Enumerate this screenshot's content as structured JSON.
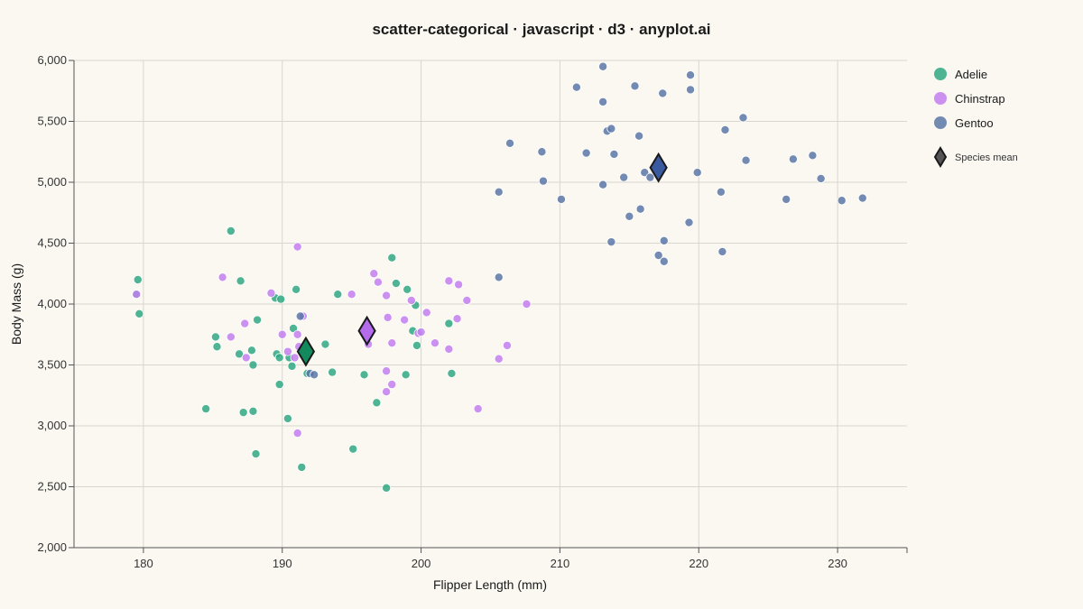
{
  "chart_data": {
    "type": "scatter",
    "title": "scatter-categorical · javascript · d3 · anyplot.ai",
    "xlabel": "Flipper Length (mm)",
    "ylabel": "Body Mass (g)",
    "xlim": [
      175,
      235
    ],
    "ylim": [
      2000,
      6000
    ],
    "xticks": [
      180,
      190,
      200,
      210,
      220,
      230
    ],
    "yticks": [
      2000,
      2500,
      3000,
      3500,
      4000,
      4500,
      5000,
      5500,
      6000
    ],
    "ytick_labels": [
      "2,000",
      "2,500",
      "3,000",
      "3,500",
      "4,000",
      "4,500",
      "5,000",
      "5,500",
      "6,000"
    ],
    "grid": true,
    "legend_position": "right",
    "mean_label": "Species mean",
    "colors": {
      "Adelie": "#2fa882",
      "Chinstrap": "#c27ef0",
      "Gentoo": "#5b77a8"
    },
    "mean_colors": {
      "Adelie": "#138a5e",
      "Chinstrap": "#b46cec",
      "Gentoo": "#3a5aa0"
    },
    "series": [
      {
        "name": "Adelie",
        "points": [
          [
            179.6,
            4200
          ],
          [
            179.5,
            4080
          ],
          [
            179.7,
            3920
          ],
          [
            186.3,
            4600
          ],
          [
            187.0,
            4190
          ],
          [
            185.2,
            3730
          ],
          [
            185.3,
            3650
          ],
          [
            186.9,
            3590
          ],
          [
            188.2,
            3870
          ],
          [
            187.8,
            3620
          ],
          [
            187.9,
            3500
          ],
          [
            184.5,
            3140
          ],
          [
            187.2,
            3110
          ],
          [
            187.9,
            3120
          ],
          [
            188.1,
            2770
          ],
          [
            189.5,
            4050
          ],
          [
            189.9,
            4040
          ],
          [
            189.6,
            3590
          ],
          [
            189.8,
            3560
          ],
          [
            190.5,
            3560
          ],
          [
            190.8,
            3800
          ],
          [
            191.0,
            4120
          ],
          [
            190.7,
            3490
          ],
          [
            189.8,
            3340
          ],
          [
            190.4,
            3060
          ],
          [
            191.4,
            2660
          ],
          [
            191.8,
            3430
          ],
          [
            193.1,
            3670
          ],
          [
            193.6,
            3440
          ],
          [
            194.0,
            4080
          ],
          [
            195.1,
            2810
          ],
          [
            195.9,
            3420
          ],
          [
            196.8,
            3190
          ],
          [
            197.5,
            2490
          ],
          [
            197.9,
            4380
          ],
          [
            198.2,
            4170
          ],
          [
            199.0,
            4120
          ],
          [
            199.4,
            3780
          ],
          [
            199.6,
            3990
          ],
          [
            199.7,
            3660
          ],
          [
            198.9,
            3420
          ],
          [
            202.0,
            3840
          ],
          [
            202.2,
            3430
          ]
        ]
      },
      {
        "name": "Chinstrap",
        "points": [
          [
            179.5,
            4080
          ],
          [
            185.7,
            4220
          ],
          [
            186.3,
            3730
          ],
          [
            187.3,
            3840
          ],
          [
            187.4,
            3560
          ],
          [
            189.2,
            4090
          ],
          [
            190.0,
            3750
          ],
          [
            190.4,
            3610
          ],
          [
            190.9,
            3560
          ],
          [
            191.1,
            3750
          ],
          [
            191.1,
            4470
          ],
          [
            191.2,
            3650
          ],
          [
            191.5,
            3900
          ],
          [
            191.1,
            2940
          ],
          [
            195.0,
            4080
          ],
          [
            196.2,
            3670
          ],
          [
            196.6,
            4250
          ],
          [
            196.9,
            4180
          ],
          [
            197.5,
            4070
          ],
          [
            197.6,
            3890
          ],
          [
            197.5,
            3450
          ],
          [
            197.5,
            3280
          ],
          [
            197.9,
            3340
          ],
          [
            197.9,
            3680
          ],
          [
            198.8,
            3870
          ],
          [
            199.3,
            4030
          ],
          [
            199.8,
            3760
          ],
          [
            200.0,
            3770
          ],
          [
            200.4,
            3930
          ],
          [
            201.0,
            3680
          ],
          [
            202.0,
            4190
          ],
          [
            202.0,
            3630
          ],
          [
            202.6,
            3880
          ],
          [
            202.7,
            4160
          ],
          [
            203.3,
            4030
          ],
          [
            204.1,
            3140
          ],
          [
            205.6,
            3550
          ],
          [
            206.2,
            3660
          ],
          [
            207.6,
            4000
          ]
        ]
      },
      {
        "name": "Gentoo",
        "points": [
          [
            191.3,
            3900
          ],
          [
            192.0,
            3430
          ],
          [
            192.3,
            3420
          ],
          [
            205.6,
            4920
          ],
          [
            205.6,
            4220
          ],
          [
            206.4,
            5320
          ],
          [
            208.7,
            5250
          ],
          [
            208.8,
            5010
          ],
          [
            210.1,
            4860
          ],
          [
            211.2,
            5780
          ],
          [
            211.9,
            5240
          ],
          [
            213.1,
            5950
          ],
          [
            213.1,
            5660
          ],
          [
            213.1,
            4980
          ],
          [
            213.4,
            5420
          ],
          [
            213.7,
            5440
          ],
          [
            213.9,
            5230
          ],
          [
            213.7,
            4510
          ],
          [
            214.6,
            5040
          ],
          [
            215.0,
            4720
          ],
          [
            215.4,
            5790
          ],
          [
            215.7,
            5380
          ],
          [
            215.8,
            4780
          ],
          [
            216.1,
            5080
          ],
          [
            216.5,
            5040
          ],
          [
            217.1,
            4400
          ],
          [
            217.4,
            5730
          ],
          [
            217.5,
            4520
          ],
          [
            217.5,
            4350
          ],
          [
            219.3,
            4670
          ],
          [
            219.4,
            5880
          ],
          [
            219.4,
            5760
          ],
          [
            219.9,
            5080
          ],
          [
            221.6,
            4920
          ],
          [
            221.7,
            4430
          ],
          [
            221.9,
            5430
          ],
          [
            223.2,
            5530
          ],
          [
            223.4,
            5180
          ],
          [
            226.3,
            4860
          ],
          [
            226.8,
            5190
          ],
          [
            228.2,
            5220
          ],
          [
            228.8,
            5030
          ],
          [
            230.3,
            4850
          ],
          [
            231.8,
            4870
          ]
        ]
      }
    ],
    "means": [
      {
        "name": "Adelie",
        "x": 191.7,
        "y": 3610
      },
      {
        "name": "Chinstrap",
        "x": 196.1,
        "y": 3780
      },
      {
        "name": "Gentoo",
        "x": 217.1,
        "y": 5120
      }
    ]
  }
}
